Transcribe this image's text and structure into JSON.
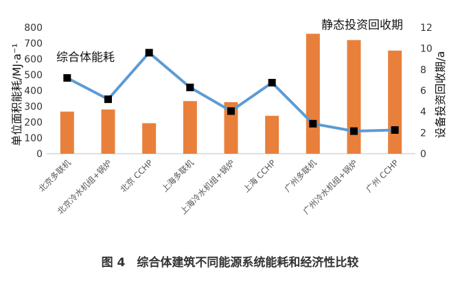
{
  "caption": "图 4　综合体建筑不同能源系统能耗和经济性比较",
  "chart_data": {
    "type": "bar+line",
    "categories": [
      "北京多联机",
      "北京冷水机组+锅炉",
      "北京 CCHP",
      "上海多联机",
      "上海冷水机组+锅炉",
      "上海 CCHP",
      "广州多联机",
      "广州冷水机组+锅炉",
      "广州 CCHP"
    ],
    "bar_series": {
      "name": "静态投资回收期",
      "axis": "right",
      "values": [
        4.0,
        4.2,
        2.9,
        5.0,
        4.9,
        3.6,
        11.4,
        10.8,
        9.8
      ],
      "color": "#E8803C"
    },
    "line_series": {
      "name": "综合体能耗",
      "axis": "left",
      "values": [
        480,
        345,
        640,
        420,
        270,
        450,
        190,
        143,
        150
      ],
      "color": "#5B9BD5",
      "marker_color": "#000000"
    },
    "left_axis": {
      "label": "单位面积能耗/MJ·a⁻¹",
      "ylim": [
        0,
        800
      ],
      "ticks": [
        0,
        100,
        200,
        300,
        400,
        500,
        600,
        700,
        800
      ]
    },
    "right_axis": {
      "label": "设备投资回收期/a",
      "ylim": [
        0,
        12
      ],
      "ticks": [
        0,
        2,
        4,
        6,
        8,
        10,
        12
      ]
    },
    "annotations": [
      "综合体能耗",
      "静态投资回收期"
    ],
    "grid": false
  }
}
